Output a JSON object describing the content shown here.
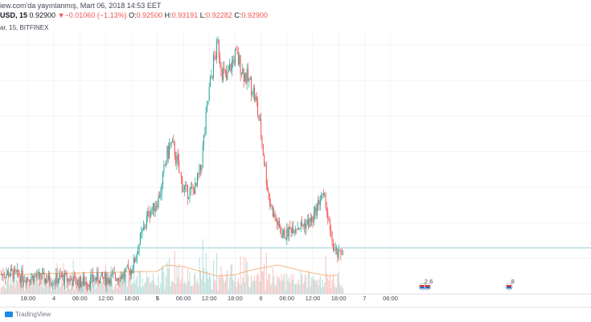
{
  "header": {
    "published": "iew.com'da yayınlanmış, Mart 06, 2018 14:53 EET",
    "symbol": "USD, 15",
    "last": "0.92900",
    "arrow": "▼",
    "change": "−0.01060 (−1.13%)",
    "o_label": "O:",
    "o": "0.92500",
    "h_label": "H:",
    "h": "0.93191",
    "l_label": "L:",
    "l": "0.92282",
    "c_label": "C:",
    "c": "0.92900",
    "series": "ar, 15, BITFINEX"
  },
  "footer": {
    "brand": "TradingView"
  },
  "colors": {
    "up": "#26a69a",
    "down": "#ef5350",
    "ma": "#f5a25d",
    "current_line": "#7fc7cf",
    "grid": "#eef0f3"
  },
  "events": [
    {
      "label": "2",
      "icon": "flag-icon",
      "x_hours": 85.4
    },
    {
      "label": "6",
      "icon": "flag-icon",
      "x_hours": 86.6
    },
    {
      "label": "8",
      "icon": "flag-icon",
      "x_hours": 105.5
    }
  ],
  "chart_data": {
    "type": "candlestick",
    "x_unit": "hours since 00:00 on the 4th",
    "xlim": [
      -12.5,
      124.5
    ],
    "ylim": [
      0.8,
      1.54
    ],
    "x_ticks": [
      {
        "label": "18:00",
        "x": -6,
        "bold": false
      },
      {
        "label": "4",
        "x": 0,
        "bold": false
      },
      {
        "label": "06:00",
        "x": 6,
        "bold": false
      },
      {
        "label": "12:00",
        "x": 12,
        "bold": false
      },
      {
        "label": "18:00",
        "x": 18,
        "bold": false
      },
      {
        "label": "5",
        "x": 24,
        "bold": true
      },
      {
        "label": "06:00",
        "x": 30,
        "bold": false
      },
      {
        "label": "12:00",
        "x": 36,
        "bold": false
      },
      {
        "label": "18:00",
        "x": 42,
        "bold": false
      },
      {
        "label": "6",
        "x": 48,
        "bold": false
      },
      {
        "label": "06:00",
        "x": 54,
        "bold": false
      },
      {
        "label": "12:00",
        "x": 60,
        "bold": false
      },
      {
        "label": "18:00",
        "x": 66,
        "bold": false
      },
      {
        "label": "7",
        "x": 72,
        "bold": false
      },
      {
        "label": "06:00",
        "x": 78,
        "bold": false
      }
    ],
    "current_price": 0.929,
    "close_path": [
      [
        -12.5,
        0.855
      ],
      [
        -10,
        0.858
      ],
      [
        -8,
        0.85
      ],
      [
        -6,
        0.845
      ],
      [
        -4,
        0.848
      ],
      [
        -2,
        0.842
      ],
      [
        0,
        0.84
      ],
      [
        2,
        0.846
      ],
      [
        4,
        0.838
      ],
      [
        6,
        0.832
      ],
      [
        8,
        0.835
      ],
      [
        10,
        0.845
      ],
      [
        12,
        0.842
      ],
      [
        14,
        0.847
      ],
      [
        16,
        0.852
      ],
      [
        18,
        0.87
      ],
      [
        19,
        0.905
      ],
      [
        20,
        0.955
      ],
      [
        21,
        0.99
      ],
      [
        22,
        1.03
      ],
      [
        23,
        1.04
      ],
      [
        24,
        1.06
      ],
      [
        25,
        1.1
      ],
      [
        26,
        1.18
      ],
      [
        27,
        1.22
      ],
      [
        28,
        1.2
      ],
      [
        29,
        1.14
      ],
      [
        30,
        1.1
      ],
      [
        31,
        1.085
      ],
      [
        32,
        1.09
      ],
      [
        33,
        1.1
      ],
      [
        34,
        1.15
      ],
      [
        35,
        1.26
      ],
      [
        36,
        1.37
      ],
      [
        37,
        1.45
      ],
      [
        38,
        1.5
      ],
      [
        39,
        1.43
      ],
      [
        40,
        1.4
      ],
      [
        41,
        1.44
      ],
      [
        42,
        1.47
      ],
      [
        43,
        1.45
      ],
      [
        44,
        1.42
      ],
      [
        45,
        1.4
      ],
      [
        46,
        1.38
      ],
      [
        47,
        1.33
      ],
      [
        48,
        1.25
      ],
      [
        49,
        1.15
      ],
      [
        50,
        1.06
      ],
      [
        51,
        1.02
      ],
      [
        52,
        0.99
      ],
      [
        53,
        0.965
      ],
      [
        54,
        0.97
      ],
      [
        55,
        0.985
      ],
      [
        56,
        0.99
      ],
      [
        57,
        0.99
      ],
      [
        58,
        0.995
      ],
      [
        59,
        1.0
      ],
      [
        60,
        1.01
      ],
      [
        61,
        1.045
      ],
      [
        62,
        1.075
      ],
      [
        63,
        1.06
      ],
      [
        64,
        0.97
      ],
      [
        65,
        0.92
      ],
      [
        66,
        0.905
      ],
      [
        67,
        0.929
      ]
    ],
    "ma_path": [
      [
        -12.5,
        0.06
      ],
      [
        24,
        0.07
      ],
      [
        26,
        0.09
      ],
      [
        30,
        0.085
      ],
      [
        34,
        0.07
      ],
      [
        38,
        0.055
      ],
      [
        42,
        0.06
      ],
      [
        46,
        0.075
      ],
      [
        52,
        0.09
      ],
      [
        58,
        0.07
      ],
      [
        64,
        0.055
      ],
      [
        66,
        0.06
      ]
    ],
    "volume_max": 1.0
  }
}
